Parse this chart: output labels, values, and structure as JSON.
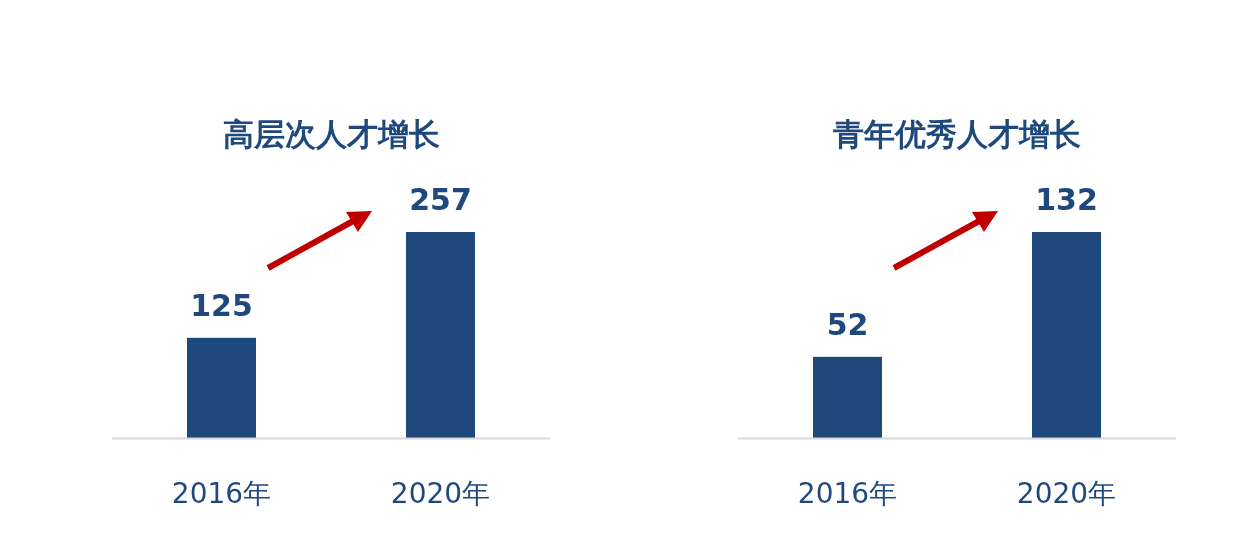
{
  "chart_data": [
    {
      "type": "bar",
      "title": "高层次人才增长",
      "categories": [
        "2016年",
        "2020年"
      ],
      "values": [
        125,
        257
      ],
      "color": "#1f497d",
      "data_labels": true
    },
    {
      "type": "bar",
      "title": "青年优秀人才增长",
      "categories": [
        "2016年",
        "2020年"
      ],
      "values": [
        52,
        132
      ],
      "color": "#1f497d",
      "data_labels": true
    }
  ]
}
